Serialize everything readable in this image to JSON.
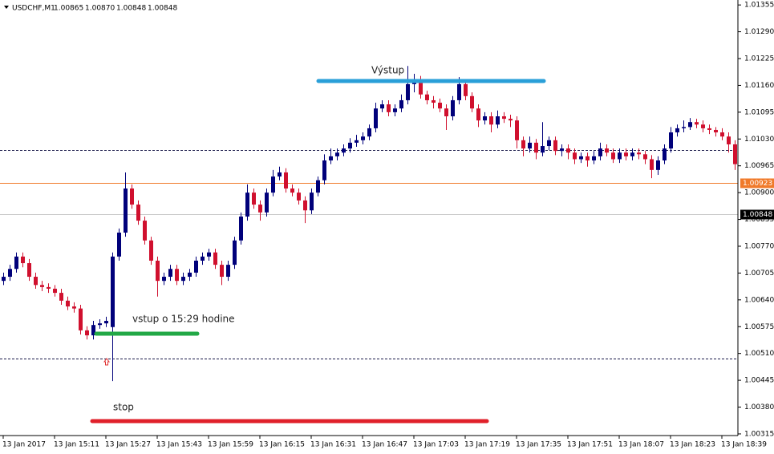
{
  "chart_data": {
    "type": "candlestick",
    "header": {
      "symbol": "USDCHF,M1",
      "prices": [
        "1.00865",
        "1.00870",
        "1.00848",
        "1.00848"
      ]
    },
    "categories": [
      "13 Jan 2017",
      null,
      null,
      null,
      null,
      null,
      null,
      null,
      "13 Jan 15:11",
      null,
      null,
      null,
      null,
      null,
      null,
      null,
      "13 Jan 15:27",
      null,
      null,
      null,
      null,
      null,
      null,
      null,
      "13 Jan 15:43",
      null,
      null,
      null,
      null,
      null,
      null,
      null,
      "13 Jan 15:59",
      null,
      null,
      null,
      null,
      null,
      null,
      null,
      "13 Jan 16:15",
      null,
      null,
      null,
      null,
      null,
      null,
      null,
      "13 Jan 16:31",
      null,
      null,
      null,
      null,
      null,
      null,
      null,
      "13 Jan 16:47",
      null,
      null,
      null,
      null,
      null,
      null,
      null,
      "13 Jan 17:03",
      null,
      null,
      null,
      null,
      null,
      null,
      null,
      "13 Jan 17:19",
      null,
      null,
      null,
      null,
      null,
      null,
      null,
      "13 Jan 17:35",
      null,
      null,
      null,
      null,
      null,
      null,
      null,
      "13 Jan 17:51",
      null,
      null,
      null,
      null,
      null,
      null,
      null,
      "13 Jan 18:07",
      null,
      null,
      null,
      null,
      null,
      null,
      null,
      "13 Jan 18:23",
      null,
      null,
      null,
      null,
      null,
      null,
      null,
      "13 Jan 18:39",
      null,
      null
    ],
    "open": [
      1.00686,
      1.00696,
      1.00715,
      1.00745,
      1.00729,
      1.00696,
      1.00676,
      1.00671,
      1.00667,
      1.00657,
      1.00638,
      1.00624,
      1.00619,
      1.00566,
      1.00554,
      1.00579,
      1.00583,
      1.00574,
      1.00745,
      1.00803,
      1.0091,
      1.00871,
      1.00832,
      1.00784,
      1.00735,
      1.00686,
      1.00696,
      1.00715,
      1.00686,
      1.00696,
      1.00706,
      1.00735,
      1.00745,
      1.00755,
      1.00725,
      1.00696,
      1.00725,
      1.00784,
      1.00842,
      1.009,
      1.00871,
      1.00852,
      1.009,
      1.00939,
      1.00949,
      1.0091,
      1.009,
      1.00881,
      1.00857,
      1.009,
      1.0093,
      1.00978,
      1.00988,
      1.00997,
      1.01007,
      1.01021,
      1.01027,
      1.01036,
      1.01056,
      1.01104,
      1.01114,
      1.01095,
      1.01104,
      1.01124,
      1.01163,
      1.01173,
      1.01138,
      1.01124,
      1.01118,
      1.01104,
      1.01085,
      1.01124,
      1.01163,
      1.01134,
      1.01104,
      1.01075,
      1.01085,
      1.01065,
      1.01085,
      1.01079,
      1.01075,
      1.01027,
      1.01007,
      1.01021,
      1.00997,
      1.01013,
      1.01027,
      1.01001,
      1.01007,
      1.00997,
      1.00981,
      1.00988,
      1.00978,
      1.00988,
      1.01007,
      1.00997,
      1.00981,
      1.00997,
      1.00988,
      1.00997,
      1.00993,
      1.00981,
      1.00955,
      1.00978,
      1.01007,
      1.01046,
      1.01056,
      1.01059,
      1.01071,
      1.01065,
      1.01056,
      1.01052,
      1.01046,
      1.01036,
      1.01017
    ],
    "high": [
      1.00706,
      1.00725,
      1.00755,
      1.00755,
      1.00739,
      1.00706,
      1.00686,
      1.0068,
      1.00676,
      1.00667,
      1.00648,
      1.00634,
      1.00628,
      1.00576,
      1.00589,
      1.00593,
      1.00599,
      1.00755,
      1.00813,
      1.00949,
      1.0092,
      1.00881,
      1.00842,
      1.00793,
      1.00745,
      1.00706,
      1.00725,
      1.00725,
      1.00706,
      1.00715,
      1.00745,
      1.00755,
      1.00764,
      1.00764,
      1.00735,
      1.00735,
      1.00793,
      1.00852,
      1.0092,
      1.0091,
      1.00881,
      1.0091,
      1.00955,
      1.00963,
      1.00959,
      1.0092,
      1.0091,
      1.00891,
      1.0091,
      1.00939,
      1.00993,
      1.01007,
      1.01007,
      1.01017,
      1.01032,
      1.0104,
      1.01046,
      1.01065,
      1.01118,
      1.01124,
      1.01124,
      1.01114,
      1.01138,
      1.01207,
      1.01188,
      1.01183,
      1.01147,
      1.01134,
      1.01128,
      1.01114,
      1.01134,
      1.0118,
      1.01173,
      1.01143,
      1.01114,
      1.01095,
      1.01095,
      1.01099,
      1.01095,
      1.01089,
      1.01085,
      1.01036,
      1.01036,
      1.0103,
      1.01071,
      1.01036,
      1.01036,
      1.01017,
      1.01017,
      1.01007,
      1.00997,
      1.00997,
      1.01001,
      1.01021,
      1.01017,
      1.01007,
      1.01007,
      1.01007,
      1.01007,
      1.01007,
      1.01001,
      1.00991,
      1.00988,
      1.01017,
      1.01059,
      1.01065,
      1.01075,
      1.01081,
      1.01079,
      1.01075,
      1.01065,
      1.01059,
      1.01056,
      1.01046,
      1.01027
    ],
    "low": [
      1.00676,
      1.00686,
      1.00706,
      1.00719,
      1.00686,
      1.00667,
      1.00661,
      1.00657,
      1.00648,
      1.00628,
      1.00615,
      1.00609,
      1.00556,
      1.00544,
      1.00544,
      1.0057,
      1.00574,
      1.00443,
      1.00735,
      1.00793,
      1.00861,
      1.00822,
      1.00774,
      1.00725,
      1.00648,
      1.00676,
      1.00686,
      1.00676,
      1.00676,
      1.00686,
      1.00696,
      1.00725,
      1.00735,
      1.00715,
      1.00676,
      1.00686,
      1.00715,
      1.00774,
      1.00832,
      1.00861,
      1.00832,
      1.00842,
      1.00891,
      1.0093,
      1.009,
      1.00891,
      1.00871,
      1.00826,
      1.00848,
      1.00891,
      1.0092,
      1.00969,
      1.00978,
      1.00988,
      1.00997,
      1.01011,
      1.01017,
      1.01027,
      1.01046,
      1.01095,
      1.01085,
      1.01085,
      1.01095,
      1.01114,
      1.01143,
      1.01128,
      1.01114,
      1.01104,
      1.01095,
      1.01052,
      1.01075,
      1.01114,
      1.01124,
      1.01095,
      1.01059,
      1.01065,
      1.01046,
      1.01056,
      1.01069,
      1.01059,
      1.01007,
      1.00988,
      1.00997,
      1.00981,
      1.00988,
      1.01003,
      1.00991,
      1.00988,
      1.00981,
      1.00969,
      1.00972,
      1.00963,
      1.00969,
      1.00978,
      1.00988,
      1.00972,
      1.00972,
      1.00978,
      1.00978,
      1.00981,
      1.00969,
      1.00935,
      1.00943,
      1.00969,
      1.00997,
      1.01036,
      1.01046,
      1.01052,
      1.01056,
      1.01046,
      1.01042,
      1.01036,
      1.01027,
      1.00997,
      1.00955
    ],
    "close": [
      1.00696,
      1.00715,
      1.00745,
      1.00729,
      1.00696,
      1.00676,
      1.00671,
      1.00667,
      1.00657,
      1.00638,
      1.00624,
      1.00619,
      1.00566,
      1.00554,
      1.00579,
      1.00583,
      1.00589,
      1.00745,
      1.00803,
      1.0091,
      1.00871,
      1.00832,
      1.00784,
      1.00735,
      1.00686,
      1.00696,
      1.00715,
      1.00686,
      1.00696,
      1.00706,
      1.00735,
      1.00745,
      1.00755,
      1.00725,
      1.00696,
      1.00725,
      1.00784,
      1.00842,
      1.009,
      1.00871,
      1.00852,
      1.009,
      1.00939,
      1.00949,
      1.0091,
      1.009,
      1.00881,
      1.00857,
      1.009,
      1.0093,
      1.00978,
      1.00988,
      1.00997,
      1.01007,
      1.01021,
      1.01027,
      1.01036,
      1.01056,
      1.01104,
      1.01114,
      1.01095,
      1.01104,
      1.01124,
      1.01163,
      1.01173,
      1.01138,
      1.01124,
      1.01118,
      1.01104,
      1.01085,
      1.01124,
      1.01163,
      1.01134,
      1.01104,
      1.01075,
      1.01085,
      1.01065,
      1.01085,
      1.01079,
      1.01075,
      1.01027,
      1.01007,
      1.01021,
      1.00997,
      1.01013,
      1.01027,
      1.01001,
      1.01007,
      1.00997,
      1.00981,
      1.00988,
      1.00978,
      1.00988,
      1.01007,
      1.00997,
      1.00981,
      1.00997,
      1.00988,
      1.00997,
      1.00993,
      1.00981,
      1.00955,
      1.00978,
      1.01007,
      1.01046,
      1.01056,
      1.01059,
      1.01071,
      1.01065,
      1.01056,
      1.01052,
      1.01046,
      1.01036,
      1.01017,
      1.00969
    ],
    "up_color": "#00007a",
    "down_color": "#d0102e",
    "ylim": [
      1.00311,
      1.01367
    ],
    "yticks": [
      1.01355,
      {
        "value": 1.0129,
        "label": "1.01290"
      },
      1.01225,
      {
        "value": 1.0116,
        "label": "1.01160"
      },
      1.01095,
      {
        "value": 1.0103,
        "label": "1.01030"
      },
      1.00965,
      {
        "value": 1.009,
        "label": "1.00900"
      },
      1.00835,
      {
        "value": 1.0077,
        "label": "1.00770"
      },
      1.00705,
      {
        "value": 1.0064,
        "label": "1.00640"
      },
      1.00575,
      {
        "value": 1.0051,
        "label": "1.00510"
      },
      1.00445,
      {
        "value": 1.0038,
        "label": "1.00380"
      },
      1.00315
    ],
    "price_lines": [
      {
        "value": 1.00923,
        "color": "#f07a2a"
      },
      {
        "value": 1.00848,
        "color": "#c8c8c8"
      }
    ],
    "dashed_levels": [
      1.01003,
      1.00498
    ],
    "annotations": [
      "Výstup",
      "vstup o 15:29 hodine",
      "stop"
    ]
  }
}
